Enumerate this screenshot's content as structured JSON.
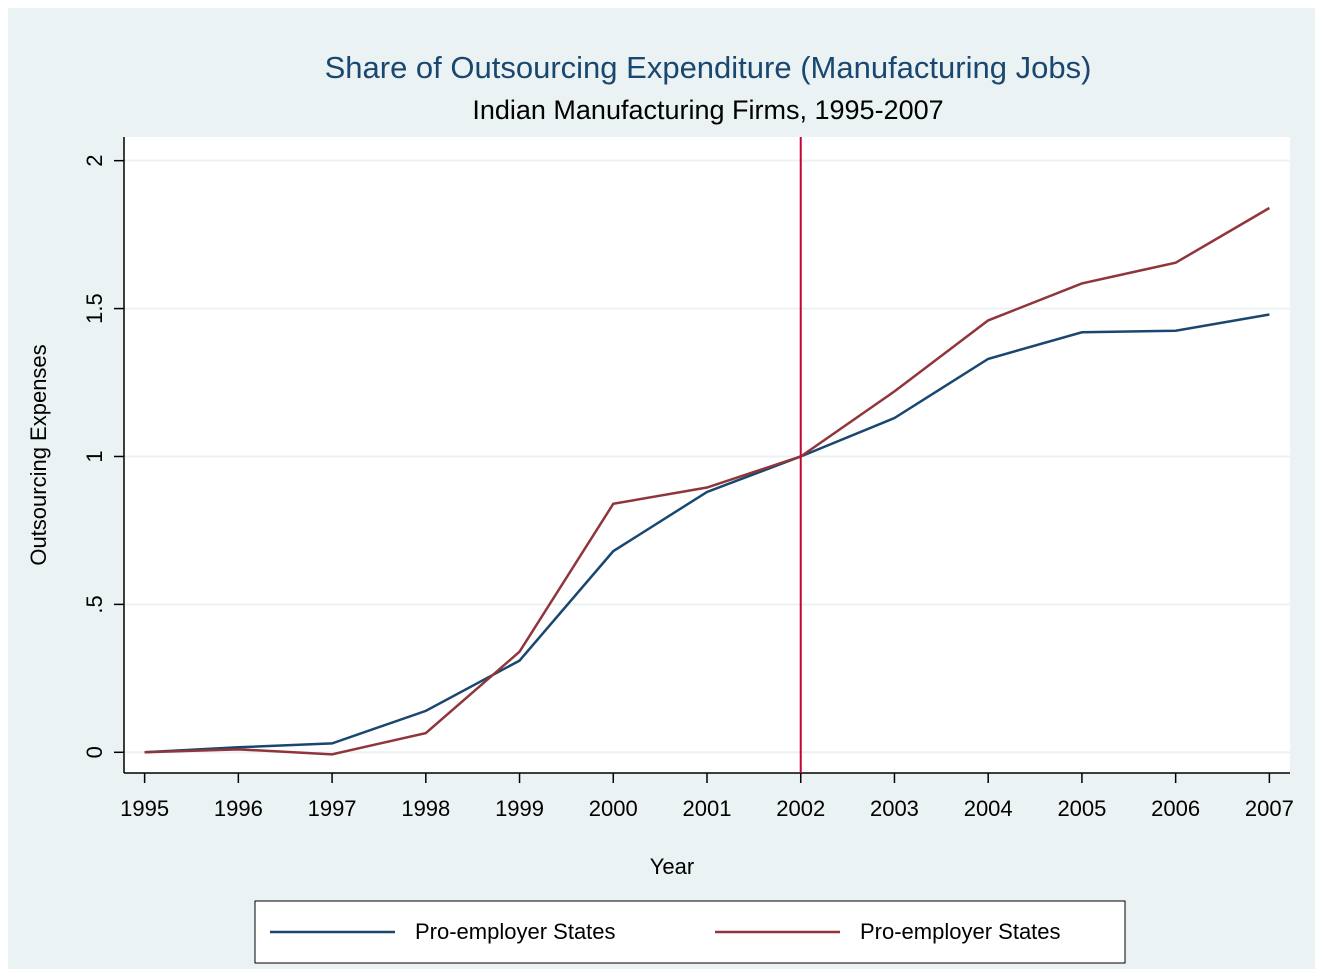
{
  "chart_data": {
    "type": "line",
    "title": "Share of Outsourcing Expenditure (Manufacturing Jobs)",
    "subtitle": "Indian Manufacturing Firms, 1995-2007",
    "x_label": "Year",
    "y_label": "Outsourcing Expenses",
    "x": [
      1995,
      1996,
      1997,
      1998,
      1999,
      2000,
      2001,
      2002,
      2003,
      2004,
      2005,
      2006,
      2007
    ],
    "series": [
      {
        "name": "Pro-employer States",
        "color": "#1a476f",
        "values": [
          0,
          0.017,
          0.03,
          0.14,
          0.31,
          0.68,
          0.88,
          1.0,
          1.13,
          1.33,
          1.42,
          1.425,
          1.48
        ]
      },
      {
        "name": "Pro-employer States",
        "color": "#90353b",
        "values": [
          0,
          0.01,
          -0.007,
          0.065,
          0.34,
          0.84,
          0.895,
          1.0,
          1.22,
          1.46,
          1.585,
          1.655,
          1.84
        ]
      }
    ],
    "xlim": [
      1994.78,
      2007.22
    ],
    "xticks": [
      1995,
      1996,
      1997,
      1998,
      1999,
      2000,
      2001,
      2002,
      2003,
      2004,
      2005,
      2006,
      2007
    ],
    "ylim": [
      -0.07,
      2.08
    ],
    "yticks": [
      0,
      {
        "value": 0.5,
        "label": ".5"
      },
      1,
      1.5,
      2
    ],
    "xline": 2002,
    "xline_color": "#c10534",
    "grid": true
  }
}
